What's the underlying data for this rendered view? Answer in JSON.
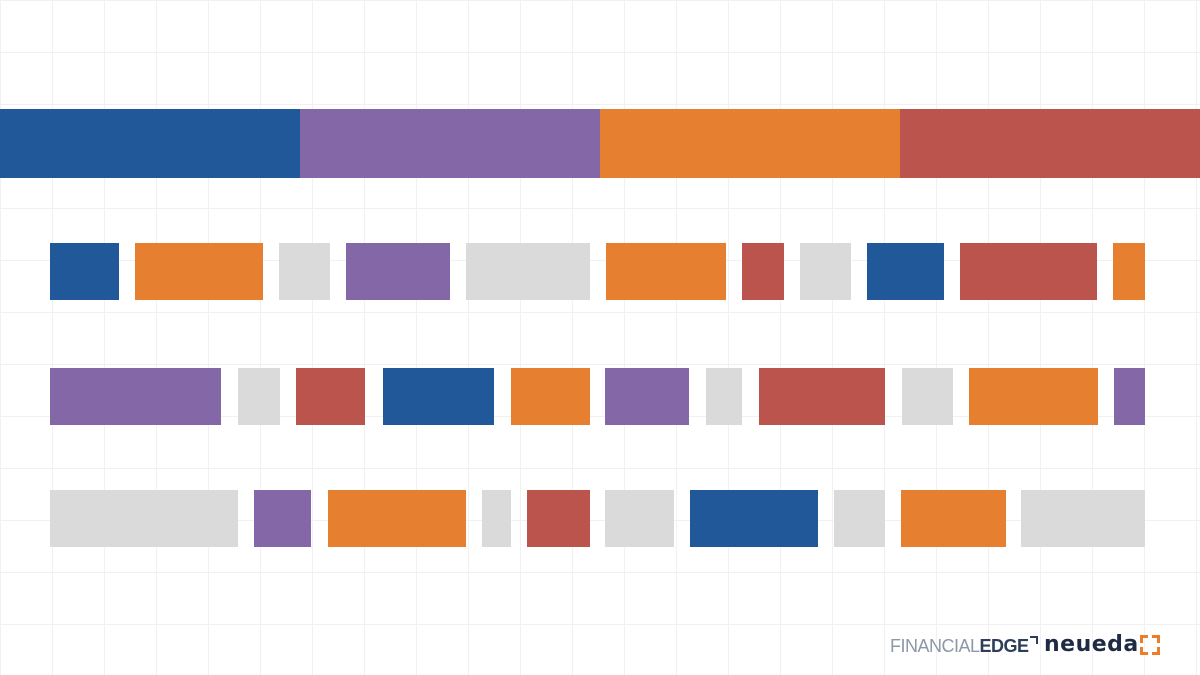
{
  "colors": {
    "blue": "#21589a",
    "purple": "#8367a6",
    "orange": "#e77f31",
    "red": "#bc544e",
    "grey": "#dadada"
  },
  "top_band": [
    "blue",
    "purple",
    "orange",
    "red"
  ],
  "rows": [
    [
      "blue",
      "orange",
      "grey",
      "purple",
      "grey",
      "orange",
      "red",
      "grey",
      "blue",
      "red",
      "orange"
    ],
    [
      "purple",
      "grey",
      "red",
      "blue",
      "orange",
      "purple",
      "grey",
      "red",
      "grey",
      "orange",
      "purple"
    ],
    [
      "grey",
      "purple",
      "orange",
      "grey",
      "red",
      "grey",
      "blue",
      "grey",
      "orange",
      "grey"
    ]
  ],
  "logos": {
    "financial_edge": {
      "light": "FINANCIAL",
      "strong": "EDGE"
    },
    "neueda": {
      "text": "neueda",
      "mark": "bracket-corners-icon"
    }
  }
}
